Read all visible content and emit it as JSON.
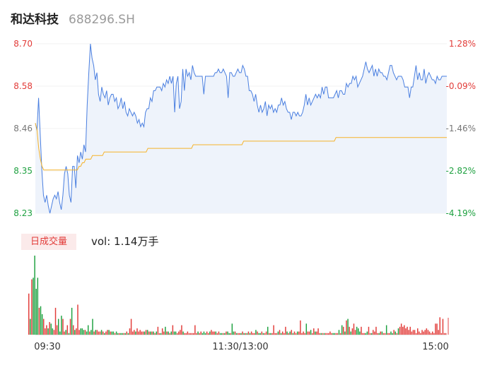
{
  "header": {
    "name": "和达科技",
    "code": "688296.SH"
  },
  "volume": {
    "tag": "日成交量",
    "label": "vol: 1.14万手"
  },
  "colors": {
    "price_line": "#4a7fe0",
    "avg_line": "#f5b32b",
    "up": "#e23c39",
    "down": "#1ea140",
    "fill": "#eef3fb"
  },
  "chart_data": [
    {
      "type": "line",
      "title": "",
      "y_ticks_left": [
        "8.70",
        "8.58",
        "8.46",
        "8.35",
        "8.23"
      ],
      "y_ticks_right": [
        "1.28%",
        "-0.09%",
        "-1.46%",
        "-2.82%",
        "-4.19%"
      ],
      "x_ticks": [
        "09:30",
        "11:30/13:00",
        "15:00"
      ],
      "ylim": [
        8.23,
        8.7
      ],
      "series": [
        {
          "role": "price",
          "values": [
            8.48,
            8.46,
            8.55,
            8.45,
            8.35,
            8.28,
            8.26,
            8.28,
            8.25,
            8.23,
            8.25,
            8.27,
            8.28,
            8.27,
            8.29,
            8.26,
            8.24,
            8.28,
            8.34,
            8.36,
            8.34,
            8.28,
            8.26,
            8.36,
            8.36,
            8.3,
            8.39,
            8.37,
            8.4,
            8.38,
            8.42,
            8.4,
            8.53,
            8.62,
            8.7,
            8.66,
            8.64,
            8.6,
            8.62,
            8.56,
            8.54,
            8.58,
            8.56,
            8.55,
            8.57,
            8.53,
            8.55,
            8.56,
            8.56,
            8.54,
            8.55,
            8.52,
            8.53,
            8.55,
            8.52,
            8.54,
            8.51,
            8.5,
            8.52,
            8.51,
            8.5,
            8.51,
            8.5,
            8.48,
            8.49,
            8.47,
            8.48,
            8.47,
            8.51,
            8.52,
            8.52,
            8.55,
            8.54,
            8.57,
            8.57,
            8.58,
            8.58,
            8.58,
            8.57,
            8.59,
            8.58,
            8.6,
            8.59,
            8.61,
            8.59,
            8.61,
            8.51,
            8.59,
            8.61,
            8.52,
            8.54,
            8.63,
            8.57,
            8.63,
            8.61,
            8.62,
            8.6,
            8.64,
            8.62,
            8.61,
            8.61,
            8.61,
            8.61,
            8.61,
            8.56,
            8.61,
            8.61,
            8.61,
            8.61,
            8.61,
            8.61,
            8.62,
            8.62,
            8.63,
            8.62,
            8.62,
            8.63,
            8.62,
            8.61,
            8.55,
            8.62,
            8.62,
            8.61,
            8.61,
            8.62,
            8.63,
            8.62,
            8.62,
            8.64,
            8.63,
            8.61,
            8.61,
            8.57,
            8.57,
            8.56,
            8.54,
            8.56,
            8.53,
            8.51,
            8.53,
            8.51,
            8.52,
            8.54,
            8.5,
            8.53,
            8.52,
            8.53,
            8.51,
            8.52,
            8.51,
            8.53,
            8.53,
            8.55,
            8.53,
            8.54,
            8.52,
            8.51,
            8.51,
            8.49,
            8.51,
            8.51,
            8.5,
            8.51,
            8.5,
            8.5,
            8.51,
            8.53,
            8.56,
            8.53,
            8.55,
            8.53,
            8.54,
            8.55,
            8.56,
            8.55,
            8.56,
            8.55,
            8.58,
            8.56,
            8.58,
            8.58,
            8.55,
            8.55,
            8.55,
            8.55,
            8.56,
            8.57,
            8.55,
            8.57,
            8.57,
            8.56,
            8.56,
            8.59,
            8.58,
            8.59,
            8.59,
            8.61,
            8.6,
            8.61,
            8.58,
            8.59,
            8.6,
            8.61,
            8.63,
            8.65,
            8.63,
            8.62,
            8.63,
            8.64,
            8.61,
            8.63,
            8.61,
            8.63,
            8.62,
            8.62,
            8.61,
            8.61,
            8.6,
            8.62,
            8.64,
            8.64,
            8.62,
            8.61,
            8.6,
            8.61,
            8.61,
            8.61,
            8.6,
            8.58,
            8.58,
            8.58,
            8.55,
            8.58,
            8.58,
            8.61,
            8.64,
            8.6,
            8.62,
            8.6,
            8.6,
            8.63,
            8.59,
            8.61,
            8.62,
            8.61,
            8.6,
            8.6,
            8.59,
            8.61,
            8.6,
            8.6,
            8.61,
            8.61,
            8.61,
            8.61
          ]
        },
        {
          "role": "average",
          "values": [
            8.48,
            8.46,
            8.41,
            8.38,
            8.36,
            8.35,
            8.35,
            8.35,
            8.35,
            8.35,
            8.35,
            8.35,
            8.35,
            8.35,
            8.35,
            8.35,
            8.35,
            8.35,
            8.35,
            8.35,
            8.35,
            8.35,
            8.35,
            8.35,
            8.35,
            8.35,
            8.36,
            8.36,
            8.37,
            8.37,
            8.38,
            8.38,
            8.38,
            8.38,
            8.39,
            8.39,
            8.39,
            8.39,
            8.39,
            8.39,
            8.39,
            8.4,
            8.4,
            8.4,
            8.4,
            8.4,
            8.4,
            8.4,
            8.4,
            8.4,
            8.4,
            8.4,
            8.4,
            8.4,
            8.4,
            8.4,
            8.4,
            8.4,
            8.4,
            8.4,
            8.4,
            8.4,
            8.4,
            8.4,
            8.4,
            8.4,
            8.4,
            8.41,
            8.41,
            8.41,
            8.41,
            8.41,
            8.41,
            8.41,
            8.41,
            8.41,
            8.41,
            8.41,
            8.41,
            8.41,
            8.41,
            8.41,
            8.41,
            8.41,
            8.41,
            8.41,
            8.41,
            8.41,
            8.41,
            8.41,
            8.41,
            8.41,
            8.41,
            8.41,
            8.42,
            8.42,
            8.42,
            8.42,
            8.42,
            8.42,
            8.42,
            8.42,
            8.42,
            8.42,
            8.42,
            8.42,
            8.42,
            8.42,
            8.42,
            8.42,
            8.42,
            8.42,
            8.42,
            8.42,
            8.42,
            8.42,
            8.42,
            8.42,
            8.42,
            8.42,
            8.42,
            8.42,
            8.42,
            8.42,
            8.43,
            8.43,
            8.43,
            8.43,
            8.43,
            8.43,
            8.43,
            8.43,
            8.43,
            8.43,
            8.43,
            8.43,
            8.43,
            8.43,
            8.43,
            8.43,
            8.43,
            8.43,
            8.43,
            8.43,
            8.43,
            8.43,
            8.43,
            8.43,
            8.43,
            8.43,
            8.43,
            8.43,
            8.43,
            8.43,
            8.43,
            8.43,
            8.43,
            8.43,
            8.43,
            8.43,
            8.43,
            8.43,
            8.43,
            8.43,
            8.43,
            8.43,
            8.43,
            8.43,
            8.43,
            8.43,
            8.43,
            8.43,
            8.43,
            8.43,
            8.43,
            8.43,
            8.43,
            8.43,
            8.43,
            8.44,
            8.44,
            8.44,
            8.44,
            8.44,
            8.44,
            8.44,
            8.44,
            8.44,
            8.44,
            8.44,
            8.44,
            8.44,
            8.44,
            8.44,
            8.44,
            8.44,
            8.44,
            8.44,
            8.44,
            8.44,
            8.44,
            8.44,
            8.44,
            8.44,
            8.44,
            8.44,
            8.44,
            8.44,
            8.44,
            8.44,
            8.44,
            8.44,
            8.44,
            8.44,
            8.44,
            8.44,
            8.44,
            8.44,
            8.44,
            8.44,
            8.44,
            8.44,
            8.44,
            8.44,
            8.44,
            8.44,
            8.44,
            8.44,
            8.44,
            8.44,
            8.44,
            8.44,
            8.44,
            8.44,
            8.44,
            8.44,
            8.44,
            8.44,
            8.44,
            8.44,
            8.44,
            8.44,
            8.44,
            8.44,
            8.44,
            8.44
          ]
        }
      ]
    },
    {
      "type": "bar",
      "title": "",
      "ylim": [
        0,
        100
      ],
      "values": [
        52,
        20,
        70,
        72,
        100,
        58,
        72,
        34,
        36,
        26,
        20,
        8,
        12,
        8,
        16,
        14,
        8,
        6,
        34,
        12,
        20,
        4,
        24,
        20,
        4,
        6,
        12,
        2,
        20,
        34,
        12,
        6,
        8,
        38,
        6,
        8,
        8,
        6,
        6,
        4,
        12,
        4,
        6,
        20,
        4,
        6,
        6,
        4,
        4,
        6,
        4,
        2,
        4,
        6,
        6,
        4,
        4,
        4,
        2,
        4,
        2,
        2,
        2,
        2,
        2,
        2,
        4,
        2,
        8,
        20,
        4,
        6,
        4,
        8,
        4,
        6,
        4,
        4,
        4,
        6,
        6,
        4,
        4,
        4,
        4,
        2,
        4,
        10,
        2,
        2,
        8,
        4,
        10,
        4,
        4,
        2,
        4,
        12,
        4,
        4,
        2,
        4,
        6,
        12,
        4,
        2,
        2,
        4,
        2,
        2,
        2,
        2,
        12,
        2,
        4,
        2,
        4,
        2,
        4,
        2,
        4,
        2,
        4,
        6,
        4,
        4,
        4,
        2,
        4,
        2,
        2,
        2,
        2,
        4,
        4,
        2,
        2,
        14,
        4,
        4,
        2,
        2,
        2,
        2,
        4,
        2,
        2,
        2,
        4,
        2,
        4,
        2,
        2,
        6,
        4,
        2,
        2,
        4,
        2,
        2,
        4,
        10,
        2,
        2,
        2,
        12,
        2,
        2,
        4,
        6,
        2,
        4,
        2,
        10,
        4,
        2,
        4,
        6,
        2,
        4,
        2,
        4,
        4,
        18,
        2,
        4,
        2,
        14,
        4,
        4,
        6,
        2,
        8,
        4,
        4,
        8,
        2,
        2,
        2,
        2,
        2,
        2,
        2,
        4,
        2,
        2,
        2,
        2,
        2,
        6,
        2,
        12,
        10,
        4,
        18,
        20,
        10,
        4,
        8,
        14,
        6,
        10,
        8,
        4,
        10,
        2,
        2,
        2,
        4,
        10,
        2,
        2,
        6,
        4,
        10,
        2,
        2,
        4,
        4,
        2,
        2,
        12,
        2,
        2,
        4,
        2,
        6,
        4,
        2,
        8,
        10,
        14,
        10,
        12,
        8,
        10,
        6,
        10,
        4,
        6,
        6,
        2,
        8,
        4,
        2,
        6,
        4,
        6,
        8,
        6,
        4,
        2,
        4,
        2,
        14,
        14,
        6,
        22,
        2,
        20,
        2,
        2
      ]
    }
  ]
}
